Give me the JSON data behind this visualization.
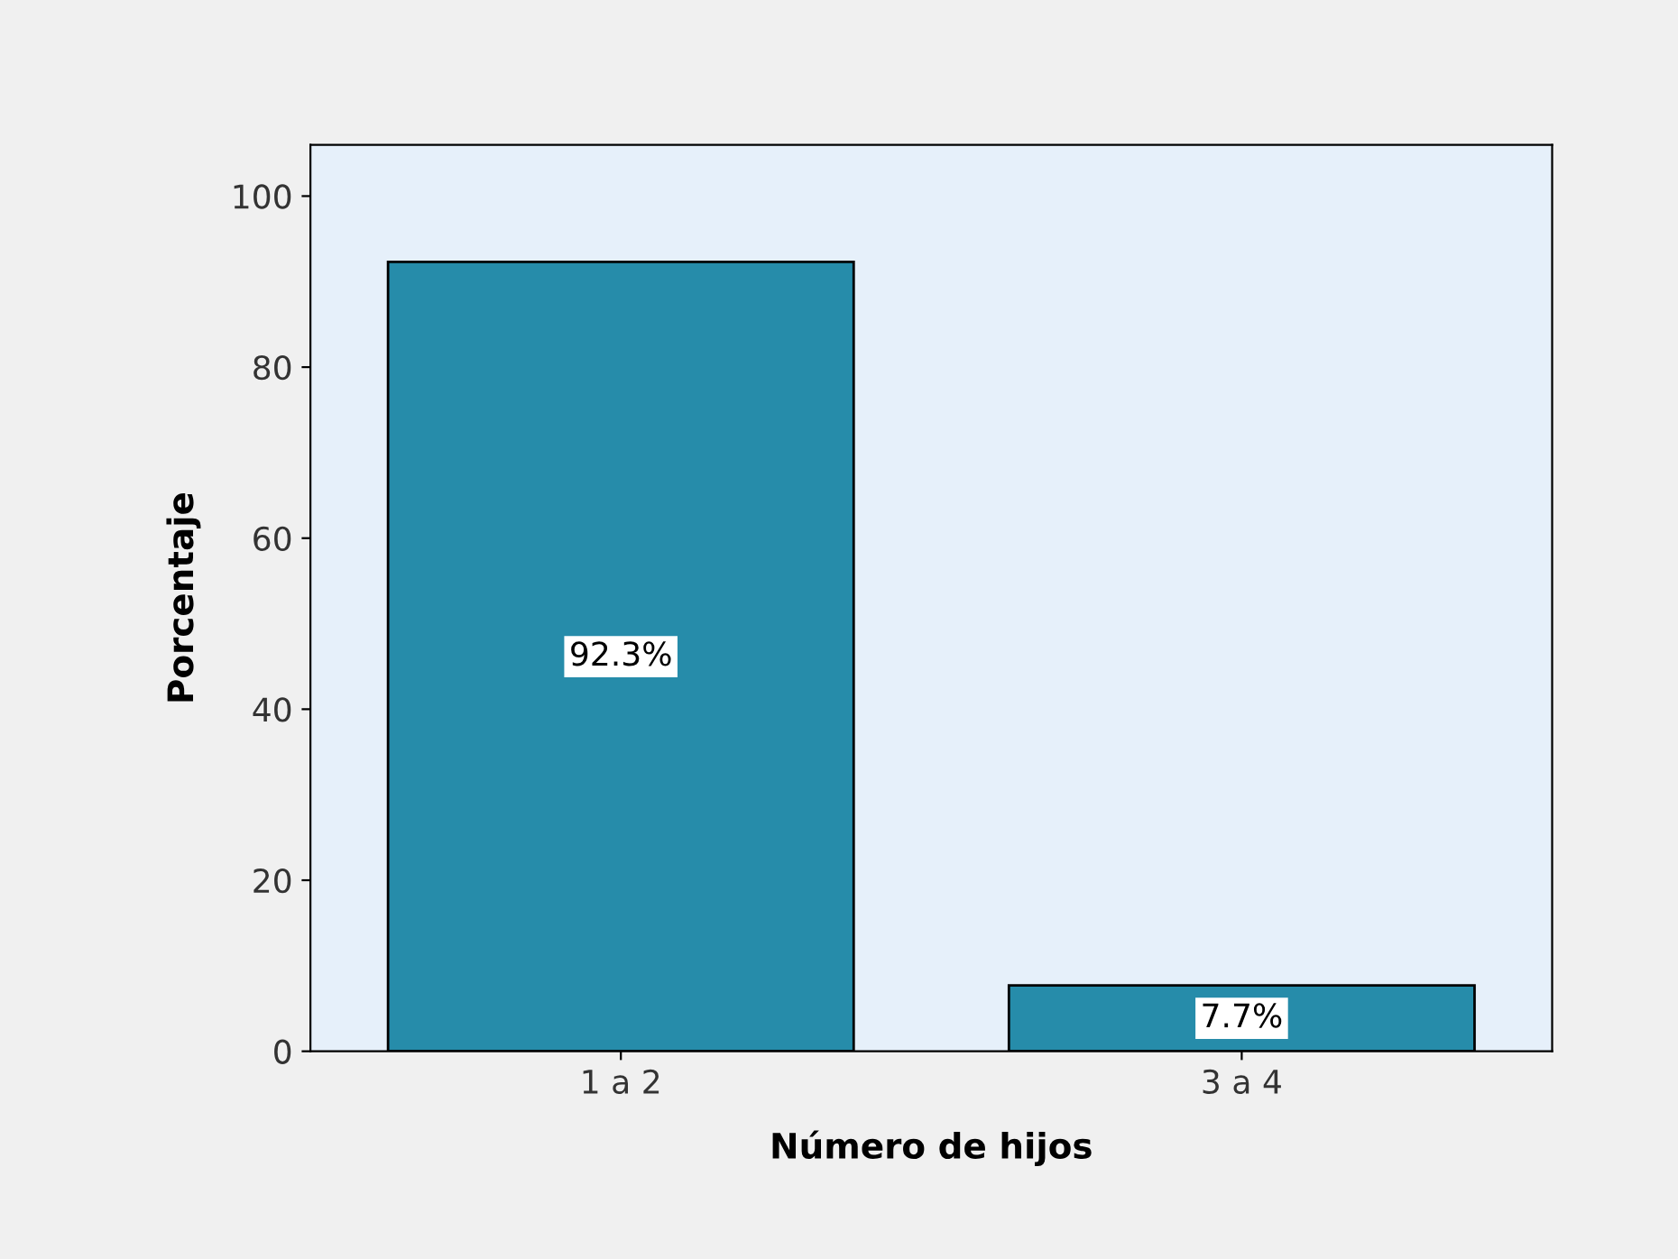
{
  "chart_data": {
    "type": "bar",
    "xlabel": "Número de hijos",
    "ylabel": "Porcentaje",
    "categories": [
      "1 a 2",
      "3 a 4"
    ],
    "values": [
      92.3,
      7.7
    ],
    "color": "#268caa",
    "value_labels": [
      "92.3%",
      "7.7%"
    ],
    "ylim": [
      0,
      106
    ],
    "yticks": [
      0,
      20,
      40,
      60,
      80,
      100
    ],
    "grid": false
  }
}
